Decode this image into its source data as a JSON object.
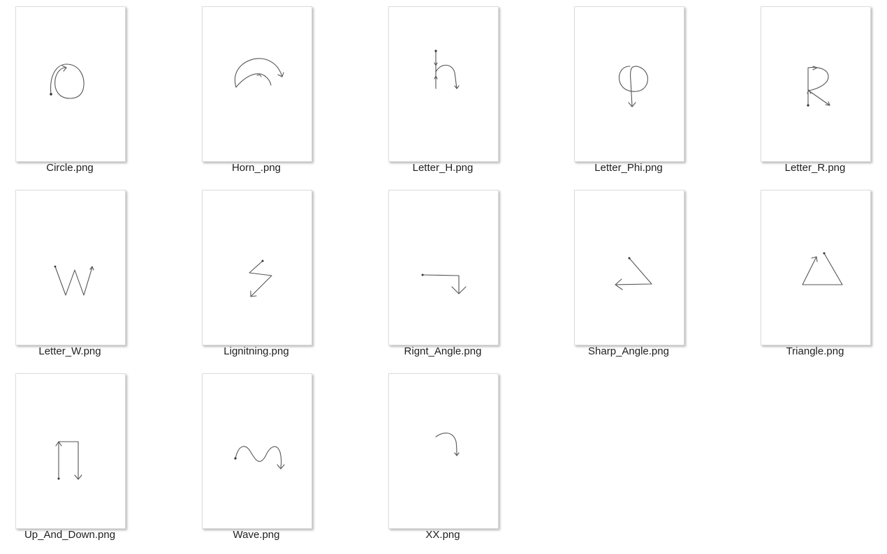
{
  "files": [
    {
      "name": "Circle.png",
      "icon": "circle-gesture-icon"
    },
    {
      "name": "Horn_.png",
      "icon": "horn-gesture-icon"
    },
    {
      "name": "Letter_H.png",
      "icon": "letter-h-gesture-icon"
    },
    {
      "name": "Letter_Phi.png",
      "icon": "letter-phi-gesture-icon"
    },
    {
      "name": "Letter_R.png",
      "icon": "letter-r-gesture-icon"
    },
    {
      "name": "Letter_W.png",
      "icon": "letter-w-gesture-icon"
    },
    {
      "name": "Lignitning.png",
      "icon": "lightning-gesture-icon"
    },
    {
      "name": "Rignt_Angle.png",
      "icon": "right-angle-gesture-icon"
    },
    {
      "name": "Sharp_Angle.png",
      "icon": "sharp-angle-gesture-icon"
    },
    {
      "name": "Triangle.png",
      "icon": "triangle-gesture-icon"
    },
    {
      "name": "Up_And_Down.png",
      "icon": "up-and-down-gesture-icon"
    },
    {
      "name": "Wave.png",
      "icon": "wave-gesture-icon"
    },
    {
      "name": "XX.png",
      "icon": "hook-gesture-icon"
    }
  ]
}
